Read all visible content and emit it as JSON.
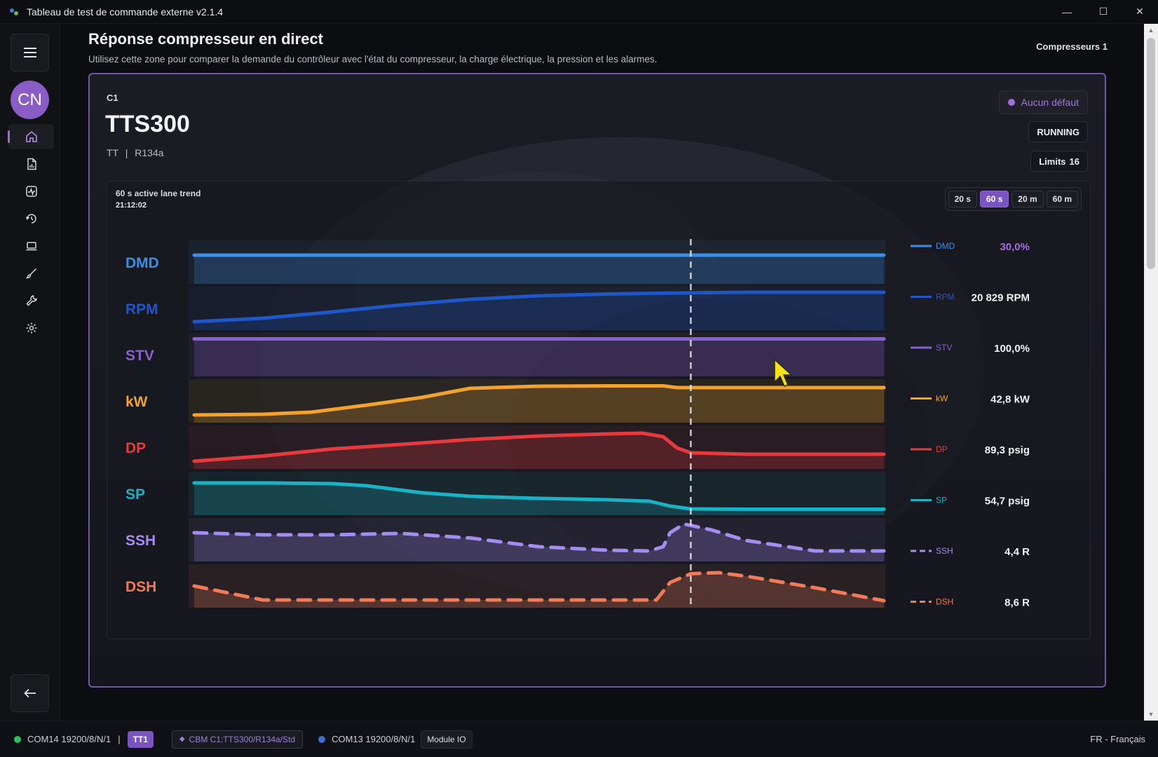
{
  "window": {
    "title": "Tableau de test de commande externe v2.1.4",
    "minimize_label": "—",
    "maximize_label": "☐",
    "close_label": "✕"
  },
  "sidebar": {
    "avatar_initials": "CN",
    "items": [
      {
        "name": "home",
        "icon": "home-icon",
        "active": true
      },
      {
        "name": "reports",
        "icon": "document-chart-icon"
      },
      {
        "name": "monitor",
        "icon": "pulse-icon"
      },
      {
        "name": "history",
        "icon": "history-icon"
      },
      {
        "name": "device",
        "icon": "laptop-icon"
      },
      {
        "name": "edit",
        "icon": "brush-icon"
      },
      {
        "name": "tools",
        "icon": "wrench-icon"
      },
      {
        "name": "settings",
        "icon": "gear-icon"
      }
    ]
  },
  "page": {
    "title": "Réponse compresseur en direct",
    "subtitle": "Utilisez cette zone pour comparer la demande du contrôleur avec l'état du compresseur, la charge électrique, la pression et les alarmes.",
    "compressors_label": "Compresseurs 1"
  },
  "card": {
    "id": "C1",
    "model": "TTS300",
    "sub_type": "TT",
    "sub_sep": "|",
    "sub_refrigerant": "R134a",
    "fault_label": "Aucun défaut",
    "state_label": "RUNNING",
    "limits_label": "Limits",
    "limits_count": "16"
  },
  "trend": {
    "title": "60 s active lane trend",
    "time": "21:12:02",
    "ranges": [
      {
        "label": "20 s",
        "active": false
      },
      {
        "label": "60 s",
        "active": true
      },
      {
        "label": "20 m",
        "active": false
      },
      {
        "label": "60 m",
        "active": false
      }
    ],
    "cursor_fraction": 0.72,
    "lanes": [
      {
        "key": "DMD",
        "label": "DMD",
        "legend": "DMD",
        "value": "30,0%",
        "color": "#3a8ee6",
        "dashed": false,
        "value_color": "#a36fe0",
        "points": [
          [
            0,
            0.7
          ],
          [
            0.2,
            0.7
          ],
          [
            0.4,
            0.7
          ],
          [
            0.6,
            0.7
          ],
          [
            0.8,
            0.7
          ],
          [
            1,
            0.7
          ]
        ]
      },
      {
        "key": "RPM",
        "label": "RPM",
        "legend": "RPM",
        "value": "20 829 RPM",
        "color": "#1f56c8",
        "dashed": false,
        "value_color": "#f0f0f3",
        "points": [
          [
            0,
            0.12
          ],
          [
            0.1,
            0.22
          ],
          [
            0.2,
            0.4
          ],
          [
            0.3,
            0.6
          ],
          [
            0.4,
            0.76
          ],
          [
            0.5,
            0.86
          ],
          [
            0.6,
            0.91
          ],
          [
            0.7,
            0.94
          ],
          [
            0.8,
            0.96
          ],
          [
            1,
            0.96
          ]
        ]
      },
      {
        "key": "STV",
        "label": "STV",
        "legend": "STV",
        "value": "100,0%",
        "color": "#8b5fd0",
        "dashed": false,
        "value_color": "#f0f0f3",
        "points": [
          [
            0,
            0.95
          ],
          [
            0.5,
            0.95
          ],
          [
            1,
            0.95
          ]
        ]
      },
      {
        "key": "kW",
        "label": "kW",
        "legend": "kW",
        "value": "42,8 kW",
        "color": "#f3a22c",
        "dashed": false,
        "value_color": "#f0f0f3",
        "points": [
          [
            0,
            0.1
          ],
          [
            0.1,
            0.12
          ],
          [
            0.17,
            0.18
          ],
          [
            0.25,
            0.38
          ],
          [
            0.33,
            0.6
          ],
          [
            0.4,
            0.86
          ],
          [
            0.5,
            0.92
          ],
          [
            0.6,
            0.93
          ],
          [
            0.68,
            0.93
          ],
          [
            0.7,
            0.88
          ],
          [
            0.8,
            0.88
          ],
          [
            1,
            0.88
          ]
        ]
      },
      {
        "key": "DP",
        "label": "DP",
        "legend": "DP",
        "value": "89,3 psig",
        "color": "#e83a3e",
        "dashed": false,
        "value_color": "#f0f0f3",
        "points": [
          [
            0,
            0.1
          ],
          [
            0.1,
            0.25
          ],
          [
            0.2,
            0.45
          ],
          [
            0.3,
            0.58
          ],
          [
            0.4,
            0.72
          ],
          [
            0.5,
            0.82
          ],
          [
            0.6,
            0.88
          ],
          [
            0.65,
            0.9
          ],
          [
            0.68,
            0.8
          ],
          [
            0.7,
            0.48
          ],
          [
            0.72,
            0.34
          ],
          [
            0.8,
            0.3
          ],
          [
            1,
            0.3
          ]
        ]
      },
      {
        "key": "SP",
        "label": "SP",
        "legend": "SP",
        "value": "54,7 psig",
        "color": "#18b3c4",
        "dashed": false,
        "value_color": "#f0f0f3",
        "points": [
          [
            0,
            0.8
          ],
          [
            0.1,
            0.8
          ],
          [
            0.2,
            0.78
          ],
          [
            0.25,
            0.72
          ],
          [
            0.33,
            0.52
          ],
          [
            0.4,
            0.42
          ],
          [
            0.5,
            0.36
          ],
          [
            0.6,
            0.32
          ],
          [
            0.66,
            0.28
          ],
          [
            0.69,
            0.14
          ],
          [
            0.72,
            0.06
          ],
          [
            0.8,
            0.05
          ],
          [
            1,
            0.05
          ]
        ]
      },
      {
        "key": "SSH",
        "label": "SSH",
        "legend": "SSH",
        "value": "4,4 R",
        "color": "#a48cf0",
        "dashed": true,
        "value_color": "#f0f0f3",
        "points": [
          [
            0,
            0.7
          ],
          [
            0.1,
            0.64
          ],
          [
            0.2,
            0.64
          ],
          [
            0.3,
            0.68
          ],
          [
            0.4,
            0.55
          ],
          [
            0.5,
            0.3
          ],
          [
            0.6,
            0.2
          ],
          [
            0.66,
            0.18
          ],
          [
            0.68,
            0.3
          ],
          [
            0.69,
            0.7
          ],
          [
            0.71,
            0.95
          ],
          [
            0.75,
            0.78
          ],
          [
            0.8,
            0.48
          ],
          [
            0.9,
            0.18
          ],
          [
            1,
            0.18
          ]
        ]
      },
      {
        "key": "DSH",
        "label": "DSH",
        "legend": "DSH",
        "value": "8,6 R",
        "color": "#f07a5a",
        "dashed": true,
        "value_color": "#f0f0f3",
        "points": [
          [
            0,
            0.5
          ],
          [
            0.05,
            0.3
          ],
          [
            0.1,
            0.1
          ],
          [
            0.2,
            0.1
          ],
          [
            0.4,
            0.1
          ],
          [
            0.6,
            0.1
          ],
          [
            0.67,
            0.1
          ],
          [
            0.69,
            0.6
          ],
          [
            0.72,
            0.85
          ],
          [
            0.76,
            0.88
          ],
          [
            0.8,
            0.78
          ],
          [
            0.9,
            0.45
          ],
          [
            1,
            0.08
          ]
        ]
      }
    ]
  },
  "statusbar": {
    "com14": "COM14 19200/8/N/1",
    "separator": "|",
    "tt_tag": "TT1",
    "cbm": "CBM C1:TTS300/R134a/Std",
    "com13": "COM13 19200/8/N/1",
    "module": "Module IO",
    "lang": "FR - Français",
    "com14_color": "#2fbf5a",
    "com13_color": "#3a6fd0"
  }
}
